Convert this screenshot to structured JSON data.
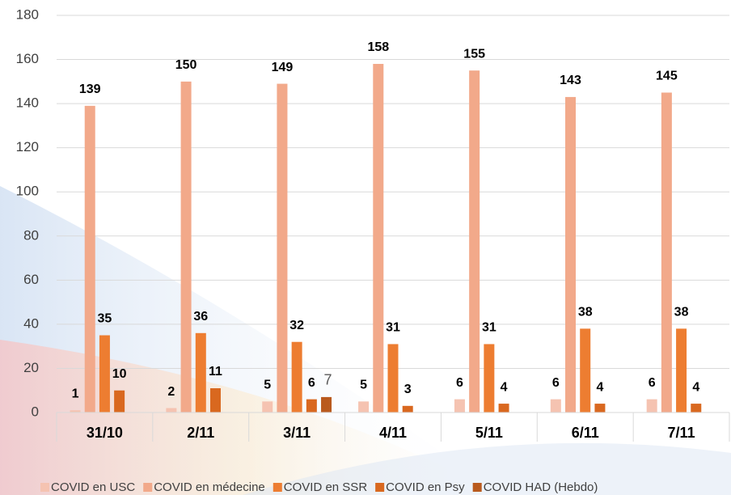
{
  "chart_data": {
    "type": "bar",
    "categories": [
      "31/10",
      "2/11",
      "3/11",
      "4/11",
      "5/11",
      "6/11",
      "7/11"
    ],
    "series": [
      {
        "name": "COVID en USC",
        "color": "#f5c3b1",
        "values": [
          1,
          2,
          5,
          5,
          6,
          6,
          6
        ]
      },
      {
        "name": "COVID en médecine",
        "color": "#f2a98a",
        "values": [
          139,
          150,
          149,
          158,
          155,
          143,
          145
        ]
      },
      {
        "name": "COVID en SSR",
        "color": "#ed7d31",
        "values": [
          35,
          36,
          32,
          31,
          31,
          38,
          38
        ]
      },
      {
        "name": "COVID en Psy",
        "color": "#d9681f",
        "values": [
          10,
          11,
          6,
          3,
          4,
          4,
          4
        ]
      },
      {
        "name": "COVID HAD (Hebdo)",
        "color": "#b95a1e",
        "values": [
          null,
          null,
          7,
          null,
          null,
          null,
          null
        ]
      }
    ],
    "ylim": [
      0,
      180
    ],
    "yticks": [
      0,
      20,
      40,
      60,
      80,
      100,
      120,
      140,
      160,
      180
    ],
    "grid": true,
    "legend": "bottom"
  }
}
